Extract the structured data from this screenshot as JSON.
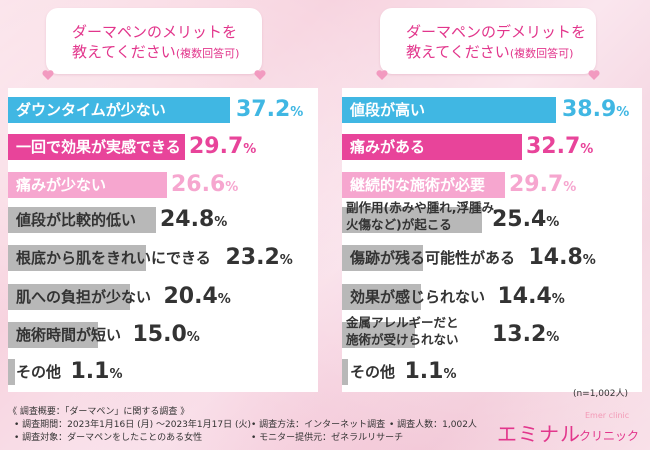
{
  "colors": {
    "blue": "#40b7e3",
    "pink_dark": "#e8449a",
    "pink_light": "#f6a6cf",
    "gray": "#b8b8b8",
    "text_white": "#ffffff",
    "text_dark": "#333333",
    "title": "#e2368c"
  },
  "left_title": {
    "line1": "ダーマペンのメリットを",
    "line2": "教えてください",
    "note": "(複数回答可)"
  },
  "right_title": {
    "line1": "ダーマペンのデメリットを",
    "line2": "教えてください",
    "note": "(複数回答可)"
  },
  "n_label": "(n=1,002人)",
  "footer": {
    "summary": "《 調査概要：「ダーマペン」に関する調査 》",
    "period": "• 調査期間：2023年1月16日 (月) 〜2023年1月17日 (火)",
    "method": "• 調査方法：インターネット調査",
    "count": "• 調査人数：1,002人",
    "target": "• 調査対象：ダーマペンをしたことのある女性",
    "provider": "• モニター提供元：ゼネラルリサーチ"
  },
  "brand": {
    "name": "エミナル",
    "clinic": "クリニック",
    "sub": "Emer clinic"
  },
  "chart_data": [
    {
      "type": "bar",
      "title": "ダーマペンのメリットを教えてください(複数回答可)",
      "unit": "%",
      "xlim": [
        0,
        37.2
      ],
      "categories": [
        "ダウンタイムが少ない",
        "一回で効果が実感できる",
        "痛みが少ない",
        "値段が比較的低い",
        "根底から肌をきれいにできる",
        "肌への負担が少ない",
        "施術時間が短い",
        "その他"
      ],
      "values": [
        37.2,
        29.7,
        26.6,
        24.8,
        23.2,
        20.4,
        15.0,
        1.1
      ],
      "value_labels": [
        "37.2",
        "29.7",
        "26.6",
        "24.8",
        "23.2",
        "20.4",
        "15.0",
        "1.1"
      ],
      "bar_colors": [
        "blue",
        "pink_dark",
        "pink_light",
        "gray",
        "gray",
        "gray",
        "gray",
        "gray"
      ]
    },
    {
      "type": "bar",
      "title": "ダーマペンのデメリットを教えてください(複数回答可)",
      "unit": "%",
      "xlim": [
        0,
        38.9
      ],
      "categories": [
        "値段が高い",
        "痛みがある",
        "継続的な施術が必要",
        "副作用(赤みや腫れ,浮腫み,\n火傷など)が起こる",
        "傷跡が残る可能性がある",
        "効果が感じられない",
        "金属アレルギーだと\n施術が受けられない",
        "その他"
      ],
      "values": [
        38.9,
        32.7,
        29.7,
        25.4,
        14.8,
        14.4,
        13.2,
        1.1
      ],
      "value_labels": [
        "38.9",
        "32.7",
        "29.7",
        "25.4",
        "14.8",
        "14.4",
        "13.2",
        "1.1"
      ],
      "bar_colors": [
        "blue",
        "pink_dark",
        "pink_light",
        "gray",
        "gray",
        "gray",
        "gray",
        "gray"
      ]
    }
  ]
}
